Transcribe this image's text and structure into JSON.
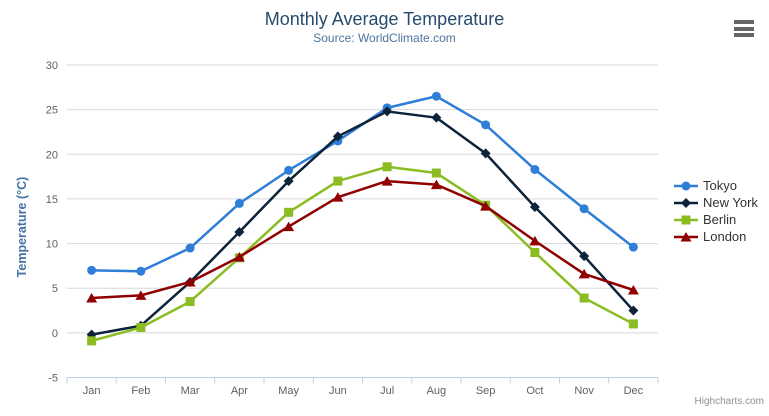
{
  "chart_data": {
    "type": "line",
    "title": "Monthly Average Temperature",
    "subtitle": "Source: WorldClimate.com",
    "categories": [
      "Jan",
      "Feb",
      "Mar",
      "Apr",
      "May",
      "Jun",
      "Jul",
      "Aug",
      "Sep",
      "Oct",
      "Nov",
      "Dec"
    ],
    "xlabel": "",
    "ylabel": "Temperature (°C)",
    "ylim": [
      -5,
      30
    ],
    "ytick_interval": 5,
    "grid": true,
    "legend_position": "right",
    "series": [
      {
        "name": "Tokyo",
        "color": "#2f7ed8",
        "marker": "circle",
        "values": [
          7.0,
          6.9,
          9.5,
          14.5,
          18.2,
          21.5,
          25.2,
          26.5,
          23.3,
          18.3,
          13.9,
          9.6
        ]
      },
      {
        "name": "New York",
        "color": "#0d233a",
        "marker": "diamond",
        "values": [
          -0.2,
          0.8,
          5.7,
          11.3,
          17.0,
          22.0,
          24.8,
          24.1,
          20.1,
          14.1,
          8.6,
          2.5
        ]
      },
      {
        "name": "Berlin",
        "color": "#8bbc21",
        "marker": "square",
        "values": [
          -0.9,
          0.6,
          3.5,
          8.4,
          13.5,
          17.0,
          18.6,
          17.9,
          14.3,
          9.0,
          3.9,
          1.0
        ]
      },
      {
        "name": "London",
        "color": "#910000",
        "marker": "triangle",
        "values": [
          3.9,
          4.2,
          5.7,
          8.5,
          11.9,
          15.2,
          17.0,
          16.6,
          14.2,
          10.3,
          6.6,
          4.8
        ]
      }
    ]
  },
  "credits": {
    "text": "Highcharts.com"
  },
  "icons": {
    "export_menu": "hamburger-icon"
  },
  "theme": {
    "title_color": "#274b6d",
    "subtitle_color": "#4d759e",
    "axis_title_color": "#4572a7",
    "tick_label_color": "#606060",
    "grid_color": "#d8d8d8",
    "axis_line_color": "#c0d0e0",
    "legend_text_color": "#333333",
    "credits_color": "#909090",
    "background": "#ffffff"
  }
}
